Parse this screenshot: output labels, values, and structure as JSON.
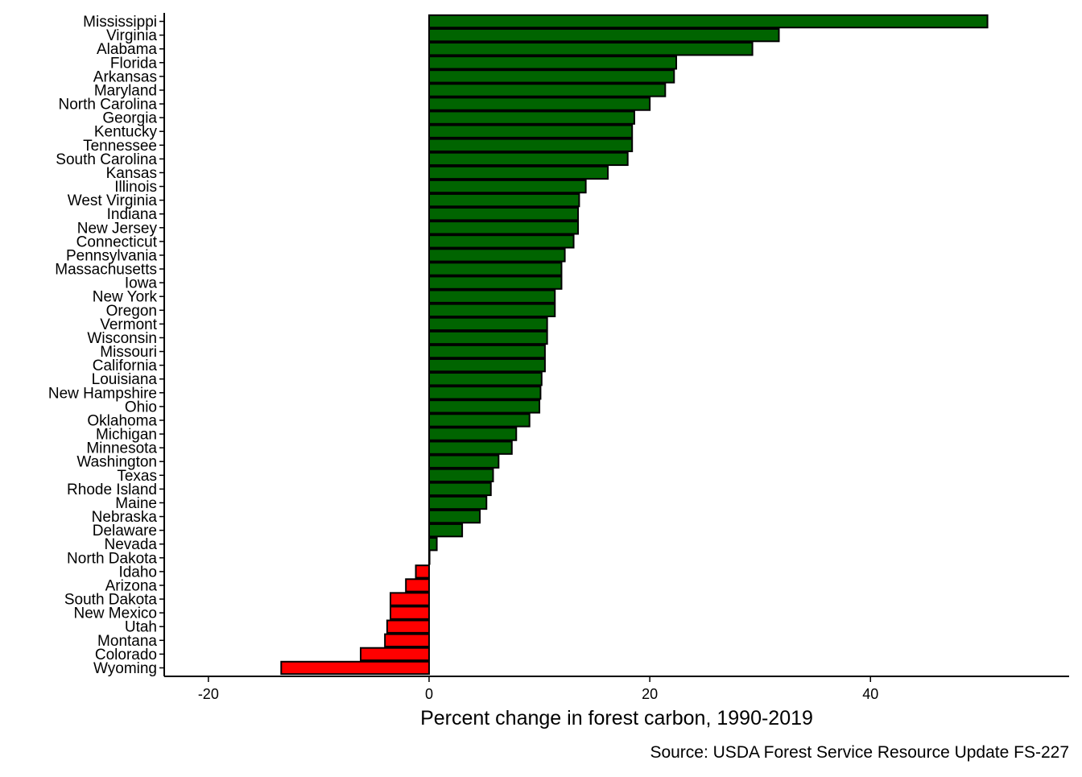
{
  "chart_data": {
    "type": "bar",
    "orientation": "horizontal",
    "xlabel": "Percent change in forest carbon, 1990-2019",
    "ylabel": "",
    "caption": "Source: USDA Forest Service Resource Update FS-227",
    "xlim": [
      -24,
      58
    ],
    "xticks": [
      -20,
      0,
      20,
      40
    ],
    "xtick_labels": [
      "-20",
      "0",
      "20",
      "40"
    ],
    "grid": false,
    "legend": "none",
    "colors": {
      "positive": "#006400",
      "negative": "#ff0000",
      "outline": "#000000"
    },
    "categories": [
      "Mississippi",
      "Virginia",
      "Alabama",
      "Florida",
      "Arkansas",
      "Maryland",
      "North Carolina",
      "Georgia",
      "Kentucky",
      "Tennessee",
      "South Carolina",
      "Kansas",
      "Illinois",
      "West Virginia",
      "Indiana",
      "New Jersey",
      "Connecticut",
      "Pennsylvania",
      "Massachusetts",
      "Iowa",
      "New York",
      "Oregon",
      "Vermont",
      "Wisconsin",
      "Missouri",
      "California",
      "Louisiana",
      "New Hampshire",
      "Ohio",
      "Oklahoma",
      "Michigan",
      "Minnesota",
      "Washington",
      "Texas",
      "Rhode Island",
      "Maine",
      "Nebraska",
      "Delaware",
      "Nevada",
      "North Dakota",
      "Idaho",
      "Arizona",
      "South Dakota",
      "New Mexico",
      "Utah",
      "Montana",
      "Colorado",
      "Wyoming"
    ],
    "values": [
      50.6,
      31.7,
      29.3,
      22.4,
      22.2,
      21.4,
      20.0,
      18.6,
      18.4,
      18.4,
      18.0,
      16.2,
      14.2,
      13.6,
      13.5,
      13.5,
      13.1,
      12.3,
      12.0,
      12.0,
      11.4,
      11.4,
      10.7,
      10.7,
      10.5,
      10.5,
      10.2,
      10.1,
      10.0,
      9.1,
      7.9,
      7.5,
      6.3,
      5.8,
      5.6,
      5.2,
      4.6,
      3.0,
      0.7,
      0.0,
      -1.2,
      -2.1,
      -3.5,
      -3.5,
      -3.8,
      -4.0,
      -6.2,
      -13.4
    ]
  }
}
